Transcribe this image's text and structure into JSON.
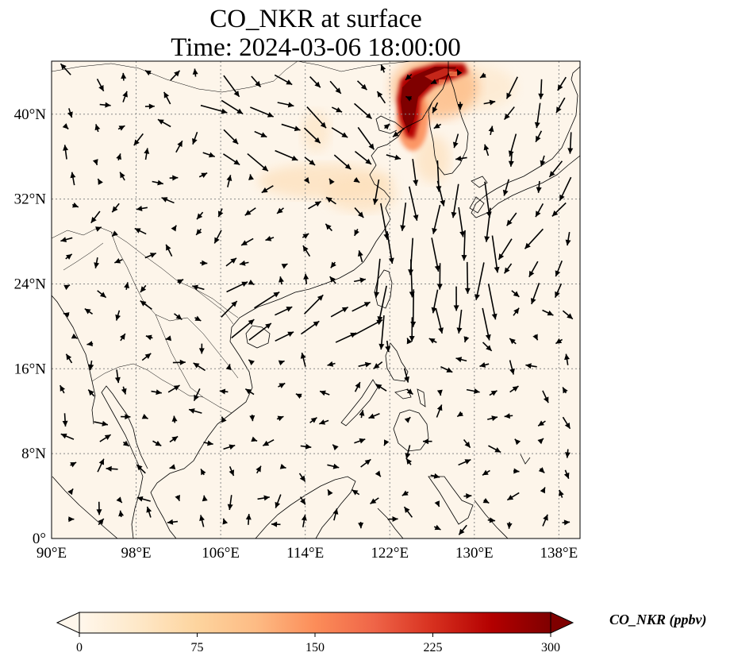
{
  "title": {
    "line1": "CO_NKR at surface",
    "line2": "Time: 2024-03-06 18:00:00"
  },
  "map": {
    "lon_range": [
      90,
      140
    ],
    "lat_range": [
      0,
      45
    ],
    "x_ticks": [
      {
        "lon": 90,
        "label": "90°E"
      },
      {
        "lon": 98,
        "label": "98°E"
      },
      {
        "lon": 106,
        "label": "106°E"
      },
      {
        "lon": 114,
        "label": "114°E"
      },
      {
        "lon": 122,
        "label": "122°E"
      },
      {
        "lon": 130,
        "label": "130°E"
      },
      {
        "lon": 138,
        "label": "138°E"
      }
    ],
    "y_ticks": [
      {
        "lat": 0,
        "label": "0°"
      },
      {
        "lat": 8,
        "label": "8°N"
      },
      {
        "lat": 16,
        "label": "16°N"
      },
      {
        "lat": 24,
        "label": "24°N"
      },
      {
        "lat": 32,
        "label": "32°N"
      },
      {
        "lat": 40,
        "label": "40°N"
      }
    ],
    "gridlines": true,
    "land_color": "#fdf5ea",
    "coast_color": "#000000"
  },
  "colorbar": {
    "label": "CO_NKR (ppbv)",
    "ticks": [
      0,
      75,
      150,
      225,
      300
    ],
    "range": [
      0,
      300
    ],
    "colormap": "OrRd",
    "stops": [
      "#fff7ec",
      "#fee8c8",
      "#fdd49e",
      "#fdbb84",
      "#fc8d59",
      "#ef6548",
      "#d7301f",
      "#b30000",
      "#7f0000"
    ]
  }
}
